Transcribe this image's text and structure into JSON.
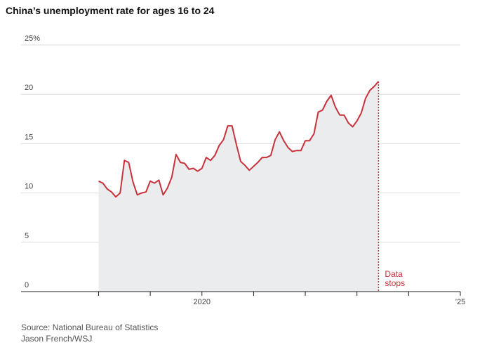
{
  "chart_data": {
    "type": "area",
    "title": "China’s unemployment rate for ages 16 to 24",
    "source": "Source: National Bureau of Statistics",
    "credit": "Jason French/WSJ",
    "x": [
      2018,
      2018.083,
      2018.167,
      2018.25,
      2018.333,
      2018.417,
      2018.5,
      2018.583,
      2018.667,
      2018.75,
      2018.833,
      2018.917,
      2019,
      2019.083,
      2019.167,
      2019.25,
      2019.333,
      2019.417,
      2019.5,
      2019.583,
      2019.667,
      2019.75,
      2019.833,
      2019.917,
      2020,
      2020.083,
      2020.167,
      2020.25,
      2020.333,
      2020.417,
      2020.5,
      2020.583,
      2020.667,
      2020.75,
      2020.833,
      2020.917,
      2021,
      2021.083,
      2021.167,
      2021.25,
      2021.333,
      2021.417,
      2021.5,
      2021.583,
      2021.667,
      2021.75,
      2021.833,
      2021.917,
      2022,
      2022.083,
      2022.167,
      2022.25,
      2022.333,
      2022.417,
      2022.5,
      2022.583,
      2022.667,
      2022.75,
      2022.833,
      2022.917,
      2023,
      2023.083,
      2023.167,
      2023.25,
      2023.333,
      2023.417
    ],
    "values": [
      11.2,
      11.0,
      10.4,
      10.1,
      9.6,
      10.0,
      13.3,
      13.1,
      11.1,
      9.8,
      10.0,
      10.1,
      11.2,
      11.0,
      11.3,
      9.8,
      10.5,
      11.6,
      13.9,
      13.1,
      13.0,
      12.4,
      12.5,
      12.2,
      12.5,
      13.6,
      13.3,
      13.8,
      14.8,
      15.4,
      16.8,
      16.8,
      14.9,
      13.2,
      12.8,
      12.3,
      12.7,
      13.1,
      13.6,
      13.6,
      13.8,
      15.4,
      16.2,
      15.3,
      14.6,
      14.2,
      14.3,
      14.3,
      15.3,
      15.3,
      16.0,
      18.2,
      18.4,
      19.3,
      19.9,
      18.7,
      17.9,
      17.9,
      17.1,
      16.7,
      17.3,
      18.1,
      19.6,
      20.4,
      20.8,
      21.3
    ],
    "color": "#c8323c",
    "fill": "#ebecee",
    "xlim": [
      2016.5,
      2025
    ],
    "xticks": [
      2020,
      {
        "value": 2025,
        "label": "’25"
      }
    ],
    "x_minor_ticks": [
      2018,
      2019,
      2021,
      2022,
      2023,
      2024
    ],
    "ylim": [
      0,
      25
    ],
    "yticks": [
      {
        "value": 25,
        "label": "25%"
      },
      20,
      15,
      10,
      5,
      0
    ],
    "grid": true,
    "annotation": {
      "text": [
        "Data",
        "stops"
      ],
      "x": 2023.417
    }
  }
}
